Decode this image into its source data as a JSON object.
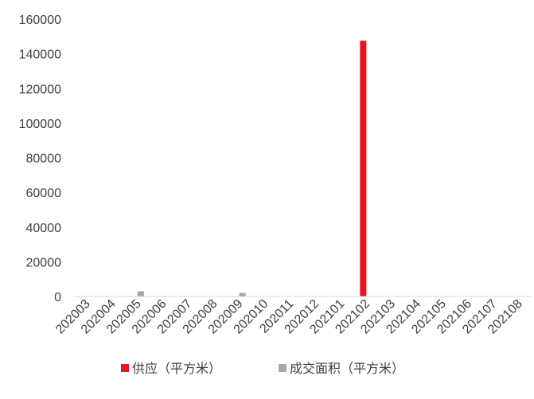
{
  "chart_data": {
    "type": "bar",
    "categories": [
      "202003",
      "202004",
      "202005",
      "202006",
      "202007",
      "202008",
      "202009",
      "202010",
      "202011",
      "202012",
      "202101",
      "202102",
      "202103",
      "202104",
      "202105",
      "202106",
      "202107",
      "202108"
    ],
    "series": [
      {
        "name": "供应（平方米）",
        "color": "#e8141f",
        "values": [
          0,
          0,
          0,
          0,
          0,
          0,
          0,
          0,
          0,
          0,
          0,
          147500,
          0,
          0,
          0,
          0,
          0,
          0
        ]
      },
      {
        "name": "成交面积（平方米）",
        "color": "#a6a6a6",
        "values": [
          0,
          0,
          3000,
          0,
          0,
          0,
          2000,
          0,
          0,
          0,
          0,
          0,
          0,
          0,
          0,
          0,
          0,
          0
        ]
      }
    ],
    "ylim": [
      0,
      160000
    ],
    "yticks": [
      0,
      20000,
      40000,
      60000,
      80000,
      100000,
      120000,
      140000,
      160000
    ],
    "grid": false,
    "legend_position": "bottom"
  }
}
